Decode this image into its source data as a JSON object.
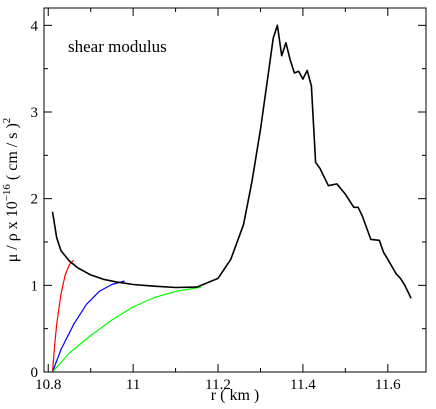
{
  "chart_data": {
    "type": "line",
    "annotation": "shear modulus",
    "xlabel": "r ( km )",
    "ylabel_parts": [
      "μ / ρ x 10",
      "−16",
      " ( cm / s )",
      "2"
    ],
    "xlim": [
      10.79,
      11.69
    ],
    "ylim": [
      0,
      4.2
    ],
    "xticks": [
      10.8,
      11.0,
      11.2,
      11.4,
      11.6
    ],
    "xtick_labels": [
      "10.8",
      "11",
      "11.2",
      "11.4",
      "11.6"
    ],
    "yticks": [
      0,
      1,
      2,
      3,
      4
    ],
    "ytick_labels": [
      "0",
      "1",
      "2",
      "3",
      "4"
    ],
    "series": [
      {
        "color": "#ff0000",
        "x": [
          10.81,
          10.815,
          10.82,
          10.83,
          10.84,
          10.85,
          10.86
        ],
        "y": [
          0.0,
          0.3,
          0.55,
          0.9,
          1.12,
          1.24,
          1.29
        ]
      },
      {
        "color": "#0000ff",
        "x": [
          10.81,
          10.83,
          10.86,
          10.89,
          10.92,
          10.95,
          10.98
        ],
        "y": [
          0.0,
          0.26,
          0.55,
          0.78,
          0.93,
          1.01,
          1.05
        ]
      },
      {
        "color": "#00ff00",
        "x": [
          10.81,
          10.85,
          10.9,
          10.95,
          11.0,
          11.05,
          11.1,
          11.16
        ],
        "y": [
          0.0,
          0.22,
          0.42,
          0.6,
          0.75,
          0.86,
          0.93,
          0.98
        ]
      },
      {
        "color": "#000000",
        "x": [
          10.81,
          10.82,
          10.83,
          10.85,
          10.87,
          10.9,
          10.93,
          10.96,
          11.0,
          11.05,
          11.1,
          11.15,
          11.2,
          11.23,
          11.26,
          11.28,
          11.3,
          11.32,
          11.33,
          11.34,
          11.35,
          11.36,
          11.37,
          11.38,
          11.39,
          11.4,
          11.41,
          11.42,
          11.43,
          11.44,
          11.46,
          11.48,
          11.5,
          11.52,
          11.53,
          11.54,
          11.56,
          11.58,
          11.59,
          11.6,
          11.62,
          11.63,
          11.64,
          11.655
        ],
        "y": [
          1.85,
          1.55,
          1.4,
          1.28,
          1.2,
          1.12,
          1.07,
          1.04,
          1.01,
          0.99,
          0.975,
          0.98,
          1.08,
          1.3,
          1.7,
          2.2,
          2.8,
          3.5,
          3.85,
          4.0,
          3.65,
          3.8,
          3.6,
          3.45,
          3.47,
          3.38,
          3.48,
          3.3,
          2.42,
          2.35,
          2.15,
          2.17,
          2.05,
          1.9,
          1.9,
          1.8,
          1.53,
          1.52,
          1.38,
          1.3,
          1.13,
          1.08,
          1.0,
          0.85
        ]
      }
    ]
  }
}
